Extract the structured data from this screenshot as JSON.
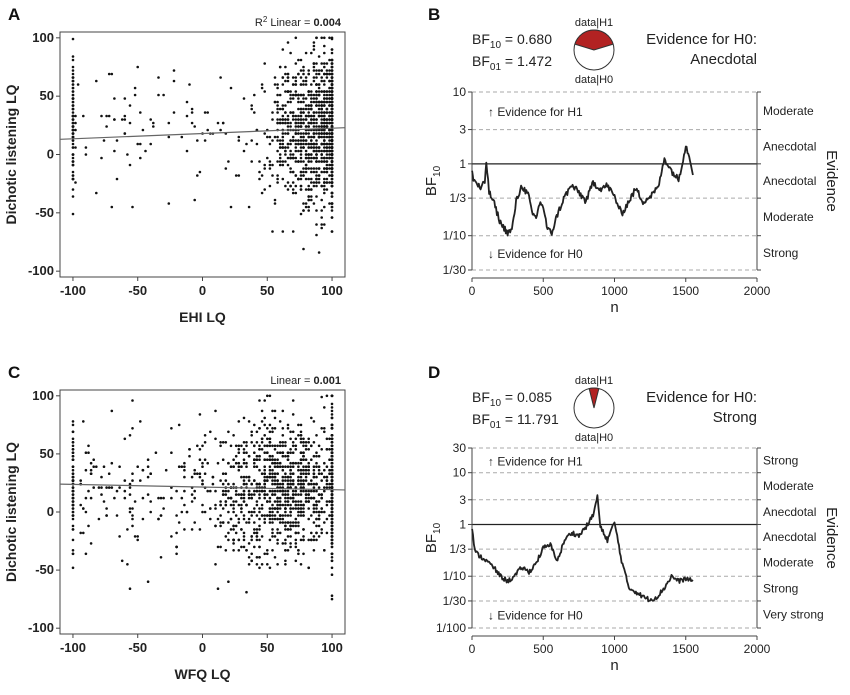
{
  "chart_data": [
    {
      "panel": "A",
      "type": "scatter",
      "xlabel": "EHI LQ",
      "ylabel": "Dichotic listening LQ",
      "xlim": [
        -110,
        110
      ],
      "ylim": [
        -105,
        105
      ],
      "xticks": [
        -100,
        -50,
        0,
        50,
        100
      ],
      "yticks": [
        -100,
        -50,
        0,
        50,
        100
      ],
      "annotation": {
        "prefix": "R",
        "sup": "2",
        "label": " Linear = ",
        "value": "0.004"
      },
      "regression": {
        "x": [
          -110,
          110
        ],
        "y": [
          13,
          23
        ]
      },
      "point_count_approx": 1500
    },
    {
      "panel": "B",
      "type": "line",
      "xlabel": "n",
      "ylabel": "BF",
      "ylabel_sub": "10",
      "right_label": "Evidence",
      "xlim": [
        0,
        2000
      ],
      "xticks": [
        0,
        500,
        1000,
        1500,
        2000
      ],
      "yscale": "log",
      "yticks": [
        {
          "value": 10,
          "label": "10"
        },
        {
          "value": 3,
          "label": "3"
        },
        {
          "value": 1,
          "label": "1"
        },
        {
          "value": 0.3333,
          "label": "1/3"
        },
        {
          "value": 0.1,
          "label": "1/10"
        },
        {
          "value": 0.0333,
          "label": "1/30"
        }
      ],
      "evidence_bands": [
        "Moderate",
        "Anecdotal",
        "Anecdotal",
        "Moderate",
        "Strong"
      ],
      "arrow_up": "Evidence for H1",
      "arrow_down": "Evidence for H0",
      "bf10_label": "BF",
      "bf10_sub": "10",
      "bf10_value": "0.680",
      "bf01_label": "BF",
      "bf01_sub": "01",
      "bf01_value": "1.472",
      "pie_top": "data|H1",
      "pie_bottom": "data|H0",
      "pie_h1_fraction": 0.405,
      "evidence_title": "Evidence for H0:",
      "evidence_value": "Anecdotal",
      "series": {
        "n": [
          1,
          10,
          30,
          60,
          90,
          100,
          120,
          150,
          200,
          250,
          280,
          310,
          350,
          400,
          420,
          450,
          480,
          500,
          530,
          560,
          600,
          650,
          700,
          750,
          800,
          850,
          900,
          950,
          1000,
          1050,
          1100,
          1150,
          1200,
          1250,
          1300,
          1320,
          1350,
          1400,
          1450,
          1500,
          1530,
          1550
        ],
        "bf": [
          0.8,
          0.6,
          0.55,
          0.45,
          0.55,
          1.1,
          0.4,
          0.3,
          0.15,
          0.11,
          0.12,
          0.3,
          0.5,
          0.35,
          0.2,
          0.18,
          0.3,
          0.25,
          0.12,
          0.11,
          0.2,
          0.35,
          0.5,
          0.4,
          0.3,
          0.55,
          0.45,
          0.5,
          0.35,
          0.2,
          0.3,
          0.45,
          0.3,
          0.35,
          0.45,
          0.6,
          1.2,
          0.8,
          0.6,
          1.8,
          1.2,
          0.7
        ]
      }
    },
    {
      "panel": "C",
      "type": "scatter",
      "xlabel": "WFQ LQ",
      "ylabel": "Dichotic listening LQ",
      "xlim": [
        -110,
        110
      ],
      "ylim": [
        -105,
        105
      ],
      "xticks": [
        -100,
        -50,
        0,
        50,
        100
      ],
      "yticks": [
        -100,
        -50,
        0,
        50,
        100
      ],
      "annotation": {
        "prefix": "",
        "sup": "",
        "label": "Linear = ",
        "value": "0.001"
      },
      "regression": {
        "x": [
          -110,
          110
        ],
        "y": [
          24,
          19
        ]
      },
      "point_count_approx": 1500
    },
    {
      "panel": "D",
      "type": "line",
      "xlabel": "n",
      "ylabel": "BF",
      "ylabel_sub": "10",
      "right_label": "Evidence",
      "xlim": [
        0,
        2000
      ],
      "xticks": [
        0,
        500,
        1000,
        1500,
        2000
      ],
      "yscale": "log",
      "yticks": [
        {
          "value": 30,
          "label": "30"
        },
        {
          "value": 10,
          "label": "10"
        },
        {
          "value": 3,
          "label": "3"
        },
        {
          "value": 1,
          "label": "1"
        },
        {
          "value": 0.3333,
          "label": "1/3"
        },
        {
          "value": 0.1,
          "label": "1/10"
        },
        {
          "value": 0.0333,
          "label": "1/30"
        },
        {
          "value": 0.01,
          "label": "1/100"
        }
      ],
      "evidence_bands": [
        "Strong",
        "Moderate",
        "Anecdotal",
        "Anecdotal",
        "Moderate",
        "Strong",
        "Very strong"
      ],
      "arrow_up": "Evidence for H1",
      "arrow_down": "Evidence for H0",
      "bf10_label": "BF",
      "bf10_sub": "10",
      "bf10_value": "0.085",
      "bf01_label": "BF",
      "bf01_sub": "01",
      "bf01_value": "11.791",
      "pie_top": "data|H1",
      "pie_bottom": "data|H0",
      "pie_h1_fraction": 0.078,
      "evidence_title": "Evidence for H0:",
      "evidence_value": "Strong",
      "series": {
        "n": [
          1,
          20,
          50,
          100,
          150,
          200,
          250,
          300,
          350,
          400,
          450,
          500,
          550,
          600,
          650,
          700,
          750,
          800,
          850,
          880,
          900,
          950,
          1000,
          1050,
          1100,
          1150,
          1200,
          1250,
          1300,
          1350,
          1400,
          1450,
          1500,
          1550
        ],
        "bf": [
          0.9,
          0.3,
          0.25,
          0.2,
          0.15,
          0.1,
          0.08,
          0.1,
          0.15,
          0.12,
          0.18,
          0.35,
          0.4,
          0.2,
          0.5,
          0.7,
          0.6,
          0.9,
          1.5,
          3.5,
          0.9,
          0.5,
          1.1,
          0.2,
          0.06,
          0.05,
          0.04,
          0.035,
          0.04,
          0.06,
          0.1,
          0.08,
          0.09,
          0.08
        ]
      }
    }
  ]
}
